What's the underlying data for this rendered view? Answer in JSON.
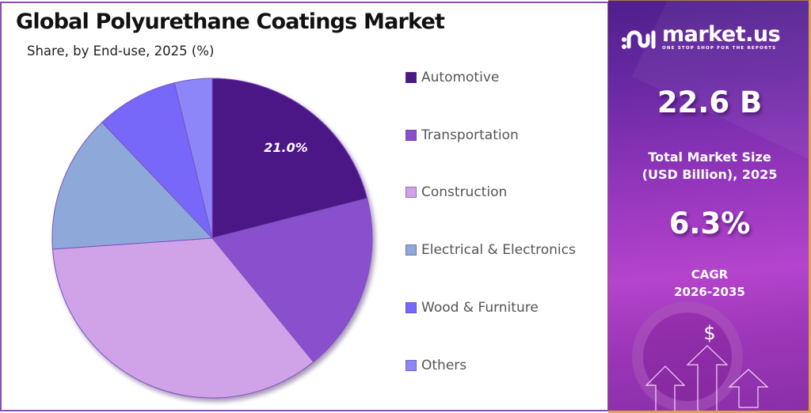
{
  "header": {
    "title": "Global Polyurethane Coatings Market",
    "subtitle": "Share, by End-use, 2025 (%)"
  },
  "legend": [
    {
      "label": "Automotive",
      "color": "#4b1885"
    },
    {
      "label": "Transportation",
      "color": "#8a4fcc"
    },
    {
      "label": "Construction",
      "color": "#d0a3e9"
    },
    {
      "label": "Electrical & Electronics",
      "color": "#8ea8da"
    },
    {
      "label": "Wood & Furniture",
      "color": "#7868fa"
    },
    {
      "label": "Others",
      "color": "#8c86f8"
    }
  ],
  "pie_label": "21.0%",
  "sidebar": {
    "brand": "market.us",
    "tagline": "ONE STOP SHOP FOR THE REPORTS",
    "market_size_value": "22.6 B",
    "market_size_caption_line1": "Total Market Size",
    "market_size_caption_line2": "(USD Billion), 2025",
    "cagr_value": "6.3%",
    "cagr_caption_line1": "CAGR",
    "cagr_caption_line2": "2026-2035",
    "dollar_symbol": "$"
  },
  "chart_data": {
    "type": "pie",
    "title": "Global Polyurethane Coatings Market",
    "subtitle": "Share, by End-use, 2025 (%)",
    "categories": [
      "Automotive",
      "Transportation",
      "Construction",
      "Electrical & Electronics",
      "Wood & Furniture",
      "Others"
    ],
    "values": [
      21.0,
      18.1,
      34.8,
      14.0,
      8.3,
      3.8
    ],
    "colors": [
      "#4b1885",
      "#8a4fcc",
      "#d0a3e9",
      "#8ea8da",
      "#7868fa",
      "#8c86f8"
    ],
    "data_labels": [
      {
        "category": "Automotive",
        "text": "21.0%"
      }
    ],
    "start_angle_deg": 0,
    "direction": "clockwise",
    "legend_position": "right"
  }
}
